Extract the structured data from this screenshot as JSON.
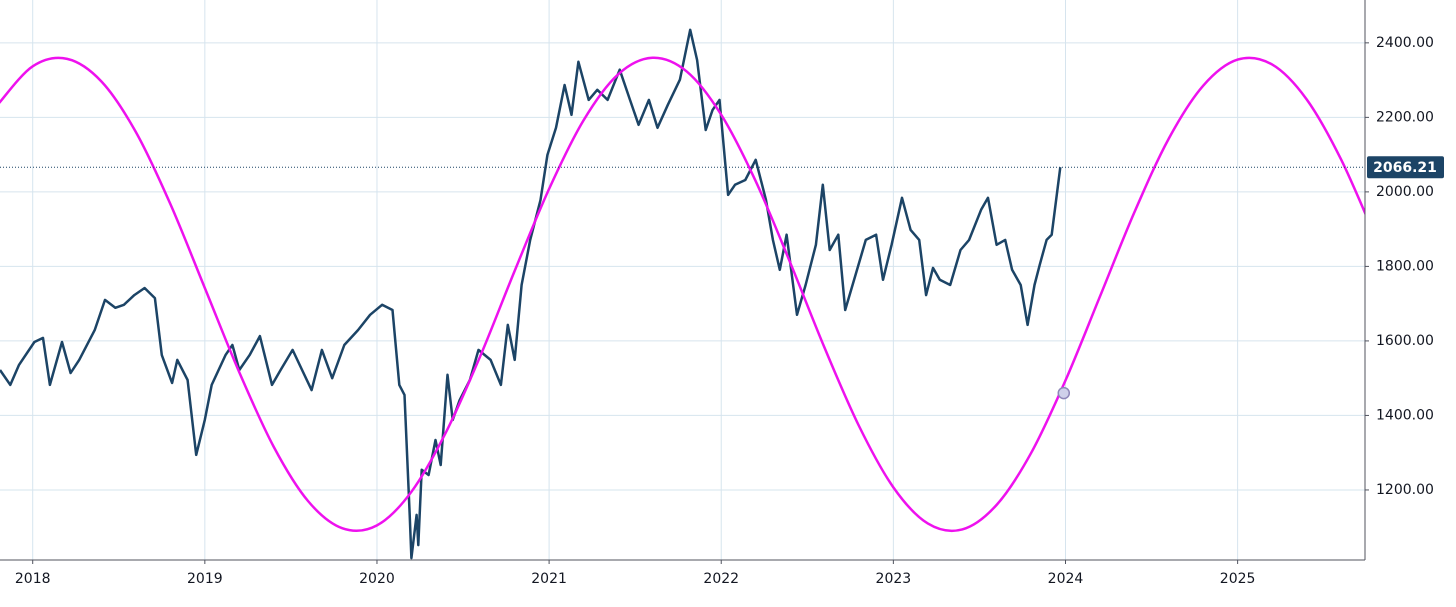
{
  "chart_data": {
    "type": "line",
    "xlim": [
      2017.81,
      2025.74
    ],
    "ylim": [
      1012,
      2515
    ],
    "xticks": [
      2018,
      2019,
      2020,
      2021,
      2022,
      2023,
      2024,
      2025
    ],
    "yticks": [
      {
        "value": 1200,
        "label": "1200.00"
      },
      {
        "value": 1400,
        "label": "1400.00"
      },
      {
        "value": 1600,
        "label": "1600.00"
      },
      {
        "value": 1800,
        "label": "1800.00"
      },
      {
        "value": 2000,
        "label": "2000.00"
      },
      {
        "value": 2200,
        "label": "2200.00"
      },
      {
        "value": 2400,
        "label": "2400.00"
      }
    ],
    "grid": true,
    "series": [
      {
        "color": "#1c4466",
        "x": [
          2017.81,
          2017.87,
          2017.92,
          2018.01,
          2018.06,
          2018.1,
          2018.17,
          2018.22,
          2018.27,
          2018.36,
          2018.42,
          2018.48,
          2018.53,
          2018.59,
          2018.65,
          2018.71,
          2018.75,
          2018.81,
          2018.84,
          2018.9,
          2018.95,
          2019.0,
          2019.04,
          2019.12,
          2019.16,
          2019.2,
          2019.26,
          2019.32,
          2019.39,
          2019.44,
          2019.51,
          2019.56,
          2019.62,
          2019.68,
          2019.74,
          2019.81,
          2019.89,
          2019.96,
          2020.03,
          2020.09,
          2020.13,
          2020.16,
          2020.19,
          2020.2,
          2020.23,
          2020.24,
          2020.26,
          2020.3,
          2020.34,
          2020.37,
          2020.41,
          2020.44,
          2020.48,
          2020.54,
          2020.59,
          2020.66,
          2020.72,
          2020.76,
          2020.8,
          2020.84,
          2020.89,
          2020.95,
          2020.99,
          2021.04,
          2021.09,
          2021.13,
          2021.17,
          2021.23,
          2021.28,
          2021.34,
          2021.41,
          2021.47,
          2021.52,
          2021.58,
          2021.63,
          2021.69,
          2021.76,
          2021.82,
          2021.86,
          2021.91,
          2021.95,
          2021.99,
          2022.04,
          2022.08,
          2022.14,
          2022.2,
          2022.26,
          2022.3,
          2022.34,
          2022.38,
          2022.44,
          2022.49,
          2022.55,
          2022.59,
          2022.63,
          2022.68,
          2022.72,
          2022.78,
          2022.84,
          2022.9,
          2022.94,
          2022.99,
          2023.05,
          2023.1,
          2023.15,
          2023.19,
          2023.23,
          2023.27,
          2023.33,
          2023.39,
          2023.44,
          2023.51,
          2023.55,
          2023.6,
          2023.65,
          2023.69,
          2023.74,
          2023.78,
          2023.82,
          2023.85,
          2023.89,
          2023.92,
          2023.97
        ],
        "values": [
          1522,
          1482,
          1535,
          1597,
          1608,
          1482,
          1597,
          1514,
          1549,
          1629,
          1710,
          1689,
          1697,
          1723,
          1742,
          1715,
          1562,
          1487,
          1549,
          1495,
          1294,
          1388,
          1482,
          1562,
          1589,
          1522,
          1562,
          1613,
          1482,
          1522,
          1576,
          1527,
          1468,
          1576,
          1500,
          1589,
          1629,
          1670,
          1697,
          1683,
          1482,
          1455,
          1133,
          1017,
          1133,
          1052,
          1254,
          1240,
          1334,
          1267,
          1509,
          1388,
          1441,
          1495,
          1576,
          1549,
          1482,
          1643,
          1549,
          1750,
          1871,
          1978,
          2099,
          2172,
          2287,
          2207,
          2349,
          2247,
          2274,
          2247,
          2328,
          2247,
          2180,
          2247,
          2172,
          2234,
          2301,
          2435,
          2354,
          2166,
          2220,
          2247,
          1992,
          2019,
          2032,
          2086,
          1978,
          1871,
          1791,
          1885,
          1670,
          1750,
          1858,
          2019,
          1844,
          1885,
          1683,
          1777,
          1871,
          1885,
          1764,
          1858,
          1984,
          1898,
          1871,
          1723,
          1796,
          1764,
          1750,
          1844,
          1871,
          1952,
          1984,
          1858,
          1871,
          1791,
          1750,
          1643,
          1750,
          1804,
          1871,
          1885,
          2066.21
        ]
      },
      {
        "color": "#ee11ee",
        "x": [
          2017.8,
          2018.0,
          2018.2,
          2018.4,
          2018.6,
          2018.8,
          2019.0,
          2019.2,
          2019.4,
          2019.6,
          2019.8,
          2020.0,
          2020.2,
          2020.4,
          2020.6,
          2020.8,
          2021.0,
          2021.2,
          2021.4,
          2021.6,
          2021.8,
          2022.0,
          2022.2,
          2022.4,
          2022.6,
          2022.8,
          2023.0,
          2023.2,
          2023.4,
          2023.6,
          2023.8,
          2024.0,
          2024.2,
          2024.4,
          2024.6,
          2024.8,
          2025.0,
          2025.2,
          2025.4,
          2025.6,
          2025.8
        ],
        "values": [
          2236,
          2337,
          2357,
          2296,
          2160,
          1967,
          1742,
          1516,
          1316,
          1170,
          1097,
          1105,
          1195,
          1354,
          1559,
          1788,
          2008,
          2192,
          2315,
          2360,
          2323,
          2207,
          2029,
          1811,
          1582,
          1372,
          1207,
          1110,
          1094,
          1160,
          1299,
          1494,
          1719,
          1945,
          2143,
          2285,
          2355,
          2342,
          2249,
          2088,
          1879
        ],
        "marker": {
          "x": 2023.99,
          "y": 1460
        }
      }
    ]
  }
}
